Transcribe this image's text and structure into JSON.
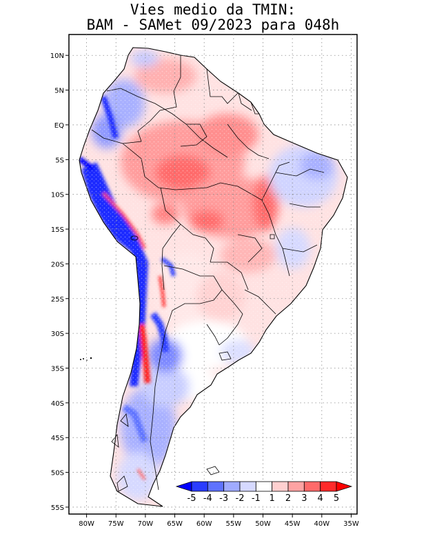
{
  "title": {
    "line1": "Vies medio da TMIN:",
    "line2": "BAM - SAMet 09/2023  para 048h"
  },
  "map": {
    "lat_labels": [
      "10N",
      "5N",
      "EQ",
      "5S",
      "10S",
      "15S",
      "20S",
      "25S",
      "30S",
      "35S",
      "40S",
      "45S",
      "50S",
      "55S"
    ],
    "lon_labels": [
      "80W",
      "75W",
      "70W",
      "65W",
      "60W",
      "55W",
      "50W",
      "45W",
      "40W",
      "35W"
    ],
    "lat_values": [
      10,
      5,
      0,
      -5,
      -10,
      -15,
      -20,
      -25,
      -30,
      -35,
      -40,
      -45,
      -50,
      -55
    ],
    "lon_values": [
      -80,
      -75,
      -70,
      -65,
      -60,
      -55,
      -50,
      -45,
      -40,
      -35
    ],
    "lat_range": [
      -56,
      13
    ],
    "lon_range": [
      -83,
      -34
    ],
    "grid": "dotted"
  },
  "colorbar": {
    "labels": [
      "-5",
      "-4",
      "-3",
      "-2",
      "-1",
      "1",
      "2",
      "3",
      "4",
      "5"
    ],
    "colors": [
      "#0000ff",
      "#2a3cff",
      "#5f73ff",
      "#a0abff",
      "#d6d9ff",
      "#ffffff",
      "#ffd0d0",
      "#ffa3a3",
      "#ff6a6a",
      "#ff2a2a",
      "#ff0000"
    ]
  }
}
